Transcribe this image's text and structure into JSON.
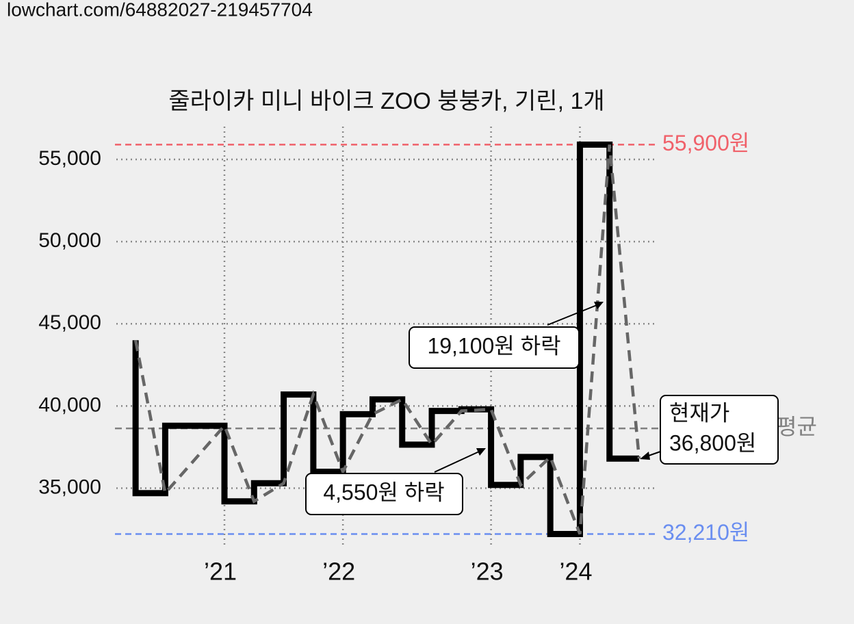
{
  "page": {
    "url": "lowchart.com/64882027-219457704"
  },
  "chart_data": {
    "type": "step",
    "title": "줄라이카 미니 바이크 ZOO 붕붕카, 기린, 1개",
    "x": [
      0,
      1,
      3,
      4,
      5,
      6,
      7,
      8,
      9,
      10,
      11,
      12,
      13,
      14,
      15,
      16,
      17
    ],
    "values": [
      44000,
      34700,
      38800,
      34200,
      35300,
      40700,
      36000,
      39500,
      40400,
      37650,
      39700,
      39800,
      35200,
      36900,
      32210,
      55900,
      36800
    ],
    "color": "#000000",
    "trend_color": "#666666",
    "xlim": [
      -0.65,
      17.6
    ],
    "xticks": [
      {
        "value": 3,
        "label": "’21"
      },
      {
        "value": 7,
        "label": "’22"
      },
      {
        "value": 12,
        "label": "’23"
      },
      {
        "value": 15,
        "label": "’24"
      }
    ],
    "ylim": [
      31400,
      57000
    ],
    "yticks": [
      {
        "value": 35000,
        "label": "35,000"
      },
      {
        "value": 40000,
        "label": "40,000"
      },
      {
        "value": 45000,
        "label": "45,000"
      },
      {
        "value": 50000,
        "label": "50,000"
      },
      {
        "value": 55000,
        "label": "55,000"
      }
    ],
    "grid": true,
    "max_line": {
      "value": 55900,
      "label": "55,900원",
      "color": "#f0616a"
    },
    "min_line": {
      "value": 32210,
      "label": "32,210원",
      "color": "#6a8ef0"
    },
    "average": {
      "value": 38640,
      "label": "평균",
      "color": "#808080"
    },
    "annotations": [
      "19,100원 하락",
      "4,550원 하락"
    ],
    "current": {
      "title": "현재가",
      "price": "36,800원"
    }
  }
}
